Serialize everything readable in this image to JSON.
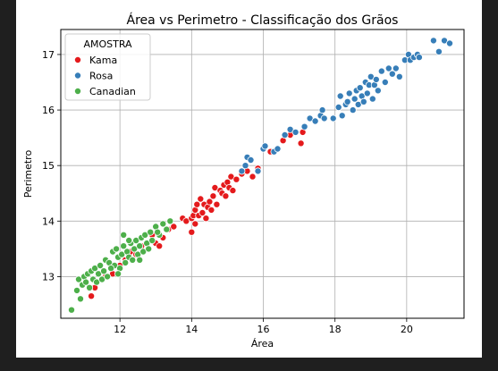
{
  "chart_data": {
    "type": "scatter",
    "title": "Área vs Perimetro - Classificação dos Grãos",
    "xlabel": "Área",
    "ylabel": "Perimetro",
    "xlim": [
      10.35,
      21.6
    ],
    "ylim": [
      12.25,
      17.45
    ],
    "x_ticks": [
      12,
      14,
      16,
      18,
      20
    ],
    "y_ticks": [
      13,
      14,
      15,
      16,
      17
    ],
    "x_tick_labels": [
      "12",
      "14",
      "16",
      "18",
      "20"
    ],
    "y_tick_labels": [
      "13",
      "14",
      "15",
      "16",
      "17"
    ],
    "grid": true,
    "legend": {
      "title": "AMOSTRA",
      "placement": "top-left",
      "entries": [
        "Kama",
        "Rosa",
        "Canadian"
      ]
    },
    "series": [
      {
        "name": "Kama",
        "color": "#e41a1c",
        "points": [
          [
            11.2,
            12.65
          ],
          [
            11.3,
            12.8
          ],
          [
            11.6,
            13.0
          ],
          [
            11.8,
            13.05
          ],
          [
            12.0,
            13.2
          ],
          [
            12.15,
            13.3
          ],
          [
            12.3,
            13.45
          ],
          [
            12.45,
            13.4
          ],
          [
            12.6,
            13.55
          ],
          [
            12.75,
            13.6
          ],
          [
            12.9,
            13.75
          ],
          [
            13.0,
            13.6
          ],
          [
            13.1,
            13.55
          ],
          [
            13.2,
            13.7
          ],
          [
            13.35,
            13.85
          ],
          [
            13.5,
            13.9
          ],
          [
            13.75,
            14.05
          ],
          [
            13.85,
            14.0
          ],
          [
            14.0,
            14.05
          ],
          [
            14.0,
            13.8
          ],
          [
            14.05,
            14.1
          ],
          [
            14.1,
            14.2
          ],
          [
            14.1,
            13.95
          ],
          [
            14.15,
            14.3
          ],
          [
            14.2,
            14.1
          ],
          [
            14.25,
            14.4
          ],
          [
            14.3,
            14.15
          ],
          [
            14.35,
            14.3
          ],
          [
            14.4,
            14.05
          ],
          [
            14.45,
            14.25
          ],
          [
            14.5,
            14.35
          ],
          [
            14.55,
            14.2
          ],
          [
            14.6,
            14.45
          ],
          [
            14.65,
            14.6
          ],
          [
            14.7,
            14.3
          ],
          [
            14.8,
            14.55
          ],
          [
            14.85,
            14.5
          ],
          [
            14.9,
            14.65
          ],
          [
            14.95,
            14.45
          ],
          [
            15.0,
            14.7
          ],
          [
            15.05,
            14.6
          ],
          [
            15.1,
            14.8
          ],
          [
            15.15,
            14.55
          ],
          [
            15.25,
            14.75
          ],
          [
            15.4,
            14.85
          ],
          [
            15.55,
            14.9
          ],
          [
            15.7,
            14.8
          ],
          [
            15.85,
            14.95
          ],
          [
            16.2,
            15.25
          ],
          [
            16.55,
            15.45
          ],
          [
            16.75,
            15.55
          ],
          [
            17.05,
            15.4
          ],
          [
            17.1,
            15.6
          ]
        ]
      },
      {
        "name": "Rosa",
        "color": "#377eb8",
        "points": [
          [
            15.4,
            14.9
          ],
          [
            15.5,
            15.0
          ],
          [
            15.55,
            15.15
          ],
          [
            15.65,
            15.1
          ],
          [
            15.85,
            14.9
          ],
          [
            16.0,
            15.3
          ],
          [
            16.05,
            15.35
          ],
          [
            16.3,
            15.25
          ],
          [
            16.4,
            15.3
          ],
          [
            16.6,
            15.55
          ],
          [
            16.75,
            15.65
          ],
          [
            16.9,
            15.6
          ],
          [
            17.15,
            15.7
          ],
          [
            17.3,
            15.85
          ],
          [
            17.45,
            15.8
          ],
          [
            17.6,
            15.9
          ],
          [
            17.65,
            16.0
          ],
          [
            17.7,
            15.85
          ],
          [
            17.95,
            15.85
          ],
          [
            18.1,
            16.05
          ],
          [
            18.15,
            16.25
          ],
          [
            18.2,
            15.9
          ],
          [
            18.3,
            16.1
          ],
          [
            18.35,
            16.15
          ],
          [
            18.4,
            16.3
          ],
          [
            18.5,
            16.0
          ],
          [
            18.55,
            16.2
          ],
          [
            18.6,
            16.35
          ],
          [
            18.65,
            16.1
          ],
          [
            18.7,
            16.4
          ],
          [
            18.75,
            16.25
          ],
          [
            18.8,
            16.15
          ],
          [
            18.85,
            16.5
          ],
          [
            18.9,
            16.3
          ],
          [
            18.95,
            16.45
          ],
          [
            19.0,
            16.6
          ],
          [
            19.05,
            16.2
          ],
          [
            19.1,
            16.45
          ],
          [
            19.15,
            16.55
          ],
          [
            19.2,
            16.35
          ],
          [
            19.3,
            16.7
          ],
          [
            19.4,
            16.5
          ],
          [
            19.5,
            16.75
          ],
          [
            19.6,
            16.65
          ],
          [
            19.7,
            16.75
          ],
          [
            19.8,
            16.6
          ],
          [
            19.95,
            16.9
          ],
          [
            20.05,
            17.0
          ],
          [
            20.1,
            16.9
          ],
          [
            20.2,
            16.95
          ],
          [
            20.3,
            17.0
          ],
          [
            20.35,
            16.95
          ],
          [
            20.75,
            17.25
          ],
          [
            20.9,
            17.05
          ],
          [
            21.05,
            17.25
          ],
          [
            21.2,
            17.2
          ]
        ]
      },
      {
        "name": "Canadian",
        "color": "#4daf4a",
        "points": [
          [
            10.65,
            12.4
          ],
          [
            10.8,
            12.75
          ],
          [
            10.85,
            12.95
          ],
          [
            10.9,
            12.6
          ],
          [
            10.95,
            12.85
          ],
          [
            11.0,
            13.0
          ],
          [
            11.05,
            12.9
          ],
          [
            11.1,
            13.05
          ],
          [
            11.15,
            12.8
          ],
          [
            11.2,
            13.1
          ],
          [
            11.25,
            12.95
          ],
          [
            11.3,
            13.15
          ],
          [
            11.35,
            12.9
          ],
          [
            11.4,
            13.05
          ],
          [
            11.45,
            13.2
          ],
          [
            11.5,
            12.95
          ],
          [
            11.55,
            13.1
          ],
          [
            11.6,
            13.3
          ],
          [
            11.65,
            13.0
          ],
          [
            11.7,
            13.25
          ],
          [
            11.8,
            13.45
          ],
          [
            11.85,
            13.2
          ],
          [
            11.9,
            13.5
          ],
          [
            11.95,
            13.35
          ],
          [
            12.0,
            13.15
          ],
          [
            12.05,
            13.4
          ],
          [
            12.1,
            13.55
          ],
          [
            12.15,
            13.25
          ],
          [
            12.2,
            13.45
          ],
          [
            12.25,
            13.35
          ],
          [
            12.3,
            13.6
          ],
          [
            12.35,
            13.3
          ],
          [
            12.4,
            13.5
          ],
          [
            12.45,
            13.65
          ],
          [
            12.5,
            13.4
          ],
          [
            12.55,
            13.55
          ],
          [
            12.6,
            13.7
          ],
          [
            12.65,
            13.45
          ],
          [
            12.7,
            13.75
          ],
          [
            12.75,
            13.6
          ],
          [
            12.8,
            13.5
          ],
          [
            12.85,
            13.8
          ],
          [
            12.9,
            13.65
          ],
          [
            13.0,
            13.9
          ],
          [
            13.1,
            13.75
          ],
          [
            13.2,
            13.95
          ],
          [
            13.3,
            13.85
          ],
          [
            13.4,
            14.0
          ],
          [
            12.1,
            13.75
          ],
          [
            11.95,
            13.05
          ],
          [
            12.25,
            13.65
          ],
          [
            12.55,
            13.3
          ],
          [
            13.05,
            13.8
          ],
          [
            11.75,
            13.15
          ]
        ]
      }
    ]
  }
}
